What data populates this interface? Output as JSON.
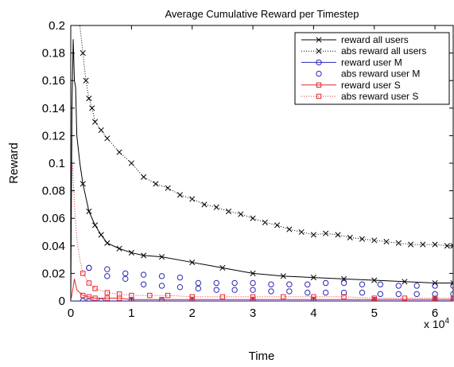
{
  "chart_data": {
    "type": "line",
    "title": "Average Cumulative Reward per Timestep",
    "xlabel": "Time",
    "ylabel": "Reward",
    "x_exponent_label": "x 10",
    "x_exponent_power": "4",
    "xlim": [
      0,
      6.3
    ],
    "ylim": [
      0,
      0.2
    ],
    "x_ticks": [
      0,
      1,
      2,
      3,
      4,
      5,
      6
    ],
    "x_tick_labels": [
      "0",
      "1",
      "2",
      "3",
      "4",
      "5",
      "6"
    ],
    "y_ticks": [
      0,
      0.02,
      0.04,
      0.06,
      0.08,
      0.1,
      0.12,
      0.14,
      0.16,
      0.18,
      0.2
    ],
    "y_tick_labels": [
      "0",
      "0.02",
      "0.04",
      "0.06",
      "0.08",
      "0.1",
      "0.12",
      "0.14",
      "0.16",
      "0.18",
      "0.2"
    ],
    "grid": false,
    "legend_position": "top-right",
    "series": [
      {
        "name": "reward all users",
        "color": "#000000",
        "line": "solid",
        "marker": "x",
        "x": [
          0,
          0.02,
          0.04,
          0.06,
          0.08,
          0.1,
          0.15,
          0.2,
          0.3,
          0.4,
          0.5,
          0.6,
          0.8,
          1.0,
          1.2,
          1.5,
          2.0,
          2.5,
          3.0,
          3.5,
          4.0,
          4.5,
          5.0,
          5.5,
          6.0,
          6.3
        ],
        "y": [
          0.0,
          0.14,
          0.19,
          0.16,
          0.155,
          0.12,
          0.1,
          0.085,
          0.065,
          0.055,
          0.048,
          0.042,
          0.038,
          0.035,
          0.033,
          0.032,
          0.028,
          0.024,
          0.02,
          0.018,
          0.017,
          0.016,
          0.015,
          0.014,
          0.013,
          0.013
        ]
      },
      {
        "name": "abs reward all users",
        "color": "#000000",
        "line": "dotted",
        "marker": "x",
        "x": [
          0.05,
          0.1,
          0.15,
          0.2,
          0.25,
          0.3,
          0.35,
          0.4,
          0.5,
          0.6,
          0.8,
          1.0,
          1.2,
          1.4,
          1.6,
          1.8,
          2.0,
          2.2,
          2.4,
          2.6,
          2.8,
          3.0,
          3.2,
          3.4,
          3.6,
          3.8,
          4.0,
          4.2,
          4.4,
          4.6,
          4.8,
          5.0,
          5.2,
          5.4,
          5.6,
          5.8,
          6.0,
          6.2,
          6.3
        ],
        "y": [
          0.22,
          0.21,
          0.2,
          0.18,
          0.16,
          0.147,
          0.14,
          0.13,
          0.124,
          0.118,
          0.108,
          0.1,
          0.09,
          0.085,
          0.082,
          0.077,
          0.074,
          0.07,
          0.068,
          0.065,
          0.063,
          0.06,
          0.057,
          0.055,
          0.052,
          0.05,
          0.048,
          0.049,
          0.048,
          0.046,
          0.045,
          0.044,
          0.043,
          0.042,
          0.041,
          0.041,
          0.041,
          0.04,
          0.04
        ]
      },
      {
        "name": "reward user M",
        "color": "#2b2bb4",
        "line": "solid",
        "marker": "o",
        "x": [
          0,
          0.02,
          0.05,
          0.08,
          0.12,
          0.2,
          0.3,
          0.5,
          1.0,
          1.5,
          2.0,
          3.0,
          4.0,
          5.0,
          6.0,
          6.3
        ],
        "y": [
          0.0,
          0.0,
          0.0,
          0.0,
          0.0,
          0.0,
          0.0,
          0.0,
          0.0,
          0.0,
          0.0,
          0.0,
          0.0,
          0.0,
          0.0,
          0.0
        ]
      },
      {
        "name": "abs reward user M",
        "color": "#2b2bb4",
        "line": "none",
        "marker": "o",
        "x": [
          0.3,
          0.6,
          0.9,
          1.2,
          1.5,
          1.8,
          2.1,
          2.4,
          2.7,
          3.0,
          3.3,
          3.6,
          3.9,
          4.2,
          4.5,
          4.8,
          5.1,
          5.4,
          5.7,
          6.0,
          6.3,
          0.3,
          0.6,
          0.9,
          1.2,
          1.5,
          1.8,
          2.1,
          2.4,
          2.7,
          3.0,
          3.3,
          3.6,
          3.9,
          4.2,
          4.5,
          4.8,
          5.1,
          5.4,
          5.7,
          6.0,
          6.3
        ],
        "y": [
          0.024,
          0.023,
          0.02,
          0.019,
          0.018,
          0.017,
          0.013,
          0.013,
          0.013,
          0.013,
          0.012,
          0.012,
          0.012,
          0.013,
          0.013,
          0.012,
          0.012,
          0.011,
          0.011,
          0.011,
          0.011,
          0.024,
          0.018,
          0.016,
          0.012,
          0.011,
          0.01,
          0.009,
          0.008,
          0.008,
          0.008,
          0.007,
          0.007,
          0.006,
          0.006,
          0.006,
          0.006,
          0.005,
          0.005,
          0.005,
          0.005,
          0.005
        ]
      },
      {
        "name": "reward user S",
        "color": "#e8262b",
        "line": "solid",
        "marker": "s",
        "x": [
          0,
          0.02,
          0.04,
          0.06,
          0.08,
          0.1,
          0.15,
          0.2,
          0.3,
          0.4,
          0.6,
          0.8,
          1.0,
          1.5,
          2.0,
          3.0,
          4.0,
          5.0,
          6.0,
          6.3
        ],
        "y": [
          0.0,
          0.005,
          0.01,
          0.016,
          0.012,
          0.008,
          0.006,
          0.004,
          0.003,
          0.002,
          0.002,
          0.002,
          0.001,
          0.001,
          0.001,
          0.001,
          0.001,
          0.001,
          0.001,
          0.001
        ]
      },
      {
        "name": "abs reward user S",
        "color": "#e8262b",
        "line": "dotted",
        "marker": "s",
        "x": [
          0.03,
          0.06,
          0.1,
          0.15,
          0.2,
          0.3,
          0.4,
          0.6,
          0.8,
          1.0,
          1.3,
          1.6,
          2.0,
          2.5,
          3.0,
          3.5,
          4.0,
          4.5,
          5.0,
          5.5,
          6.0,
          6.3
        ],
        "y": [
          0.1,
          0.07,
          0.045,
          0.03,
          0.02,
          0.013,
          0.009,
          0.006,
          0.005,
          0.004,
          0.004,
          0.004,
          0.003,
          0.003,
          0.003,
          0.003,
          0.003,
          0.003,
          0.002,
          0.002,
          0.002,
          0.002
        ]
      }
    ]
  }
}
